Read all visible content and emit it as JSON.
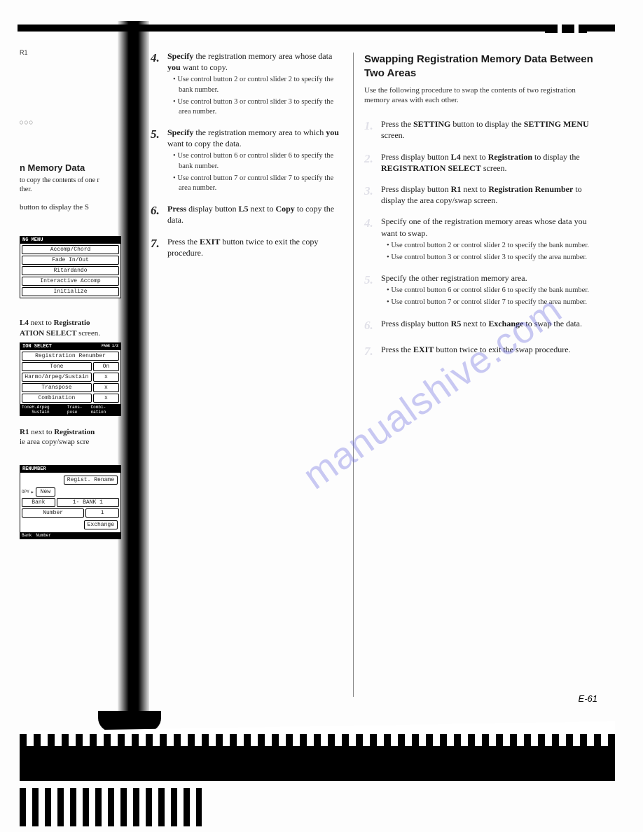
{
  "left": {
    "r1": "R1",
    "dots": "○○○",
    "h1": "n Memory Data",
    "h1_sub1": "to copy the contents of one r",
    "h1_sub2": "ther.",
    "p1": "button to display the S",
    "menu1": {
      "header": "NG MENU",
      "rows": [
        "Accomp/Chord",
        "Fade In/Out",
        "Ritardando",
        "Interactive Accomp",
        "Initialize"
      ]
    },
    "p2a": "L4",
    "p2b": "next to",
    "p2c": "Registratio",
    "p2d": "ATION SELECT",
    "p2e": "screen.",
    "menu2": {
      "header": "ION SELECT",
      "page": "PAGE 1/2",
      "rows": [
        {
          "l": "Registration Renumber",
          "r": ""
        },
        {
          "l": "Tone",
          "r": "On"
        },
        {
          "l": "Harmo/Arpeg/Sustain",
          "r": "x"
        },
        {
          "l": "Transpose",
          "r": "x"
        },
        {
          "l": "Combination",
          "r": "x"
        }
      ],
      "footer": [
        "Tone",
        "H.Arpeg Sustain",
        "Trans-pose",
        "Combi-nation"
      ]
    },
    "p3a": "R1",
    "p3b": "next to",
    "p3c": "Registration",
    "p3d": "ie area copy/swap scre",
    "menu3": {
      "header": "RENUMBER",
      "rename": "Regist. Rename",
      "copy": "OPY",
      "new": "New",
      "bank": "Bank",
      "bankval": "1- BANK 1",
      "number": "Number",
      "numberval": "1",
      "exchange": "Exchange",
      "footer": [
        "Bank",
        "Number"
      ]
    }
  },
  "mid": {
    "steps": [
      {
        "n": "4.",
        "text_a": "Specify",
        "text_b": " the registration memory area whose data ",
        "text_c": "you",
        "text_d": " want to copy.",
        "bullets": [
          "Use control button 2 or control slider 2 to specify the bank number.",
          "Use control button 3 or control slider 3 to specify the area number."
        ]
      },
      {
        "n": "5.",
        "text_a": "Specify",
        "text_b": " the registration memory area to which ",
        "text_c": "you",
        "text_d": " want to copy the data.",
        "bullets": [
          "Use control button 6 or control slider 6 to specify the bank number.",
          "Use control button 7 or control slider 7 to specify the area number."
        ]
      },
      {
        "n": "6.",
        "text_a": "Press",
        "text_b": " display button ",
        "text_c": "L5",
        "text_d": " next to ",
        "text_e": "Copy",
        "text_f": " to copy the data.",
        "bullets": []
      },
      {
        "n": "7.",
        "text_a": "Press the ",
        "text_b": "EXIT",
        "text_c": " button twice to exit the copy procedure.",
        "bullets": []
      }
    ]
  },
  "right": {
    "heading": "Swapping Registration Memory Data Between Two Areas",
    "intro": "Use the following procedure to swap the contents of two registration memory areas with each other.",
    "steps": [
      {
        "n": "1.",
        "parts": [
          "Press the ",
          "SETTING",
          " button to display the ",
          "SETTING MENU",
          " screen."
        ],
        "bold": [
          1,
          3
        ],
        "bullets": []
      },
      {
        "n": "2.",
        "parts": [
          "Press display button ",
          "L4",
          " next to ",
          "Registration",
          " to display the ",
          "REGISTRATION SELECT",
          " screen."
        ],
        "bold": [
          1,
          3,
          5
        ],
        "bullets": []
      },
      {
        "n": "3.",
        "parts": [
          "Press display button ",
          "R1",
          " next to ",
          "Registration Renumber",
          " to display the area copy/swap screen."
        ],
        "bold": [
          1,
          3
        ],
        "bullets": []
      },
      {
        "n": "4.",
        "parts": [
          "Specify one of the registration memory areas whose data you want to swap."
        ],
        "bold": [],
        "bullets": [
          "Use control button 2 or control slider 2 to specify the bank number.",
          "Use control button 3 or control slider 3 to specify the area number."
        ]
      },
      {
        "n": "5.",
        "parts": [
          "Specify the other registration memory area."
        ],
        "bold": [],
        "bullets": [
          "Use control button 6 or control slider 6 to specify the bank number.",
          "Use control button 7 or control slider 7 to specify the area number."
        ]
      },
      {
        "n": "6.",
        "parts": [
          "Press display button ",
          "R5",
          " next to ",
          "Exchange",
          " to swap the data."
        ],
        "bold": [
          1,
          3
        ],
        "bullets": []
      },
      {
        "n": "7.",
        "parts": [
          "Press the ",
          "EXIT",
          " button twice to exit the swap procedure."
        ],
        "bold": [
          1
        ],
        "bullets": []
      }
    ]
  },
  "watermark": "manualshive.com",
  "page_num": "E-61"
}
